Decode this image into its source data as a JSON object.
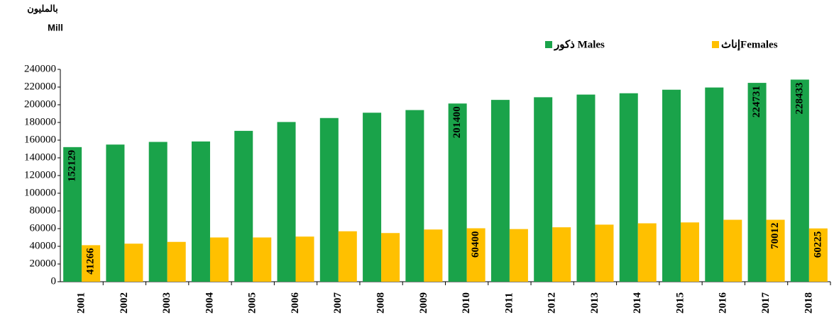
{
  "chart_data": {
    "type": "bar",
    "ylabel_lines": [
      "بالمليون",
      "Mill"
    ],
    "categories": [
      "2001",
      "2002",
      "2003",
      "2004",
      "2005",
      "2006",
      "2007",
      "2008",
      "2009",
      "2010",
      "2011",
      "2012",
      "2013",
      "2014",
      "2015",
      "2016",
      "2017",
      "2018"
    ],
    "series": [
      {
        "name": "ذكور Males",
        "color": "#1aa34a",
        "labels_at": [
          0,
          9,
          16,
          17
        ],
        "values": [
          152129,
          155000,
          158000,
          158500,
          170500,
          180500,
          185000,
          191000,
          194000,
          201400,
          205500,
          208500,
          211500,
          213000,
          217000,
          219500,
          224731,
          228433
        ]
      },
      {
        "name": "إناثFemales",
        "color": "#ffc000",
        "labels_at": [
          0,
          9,
          16,
          17
        ],
        "values": [
          41266,
          43000,
          45000,
          50000,
          50000,
          51000,
          57000,
          55000,
          59000,
          60400,
          59500,
          61500,
          64500,
          66000,
          67000,
          70000,
          70012,
          60225
        ]
      }
    ],
    "ylim": [
      0,
      240000
    ],
    "yticks": [
      0,
      20000,
      40000,
      60000,
      80000,
      100000,
      120000,
      140000,
      160000,
      180000,
      200000,
      220000,
      240000
    ],
    "legend": "top"
  }
}
